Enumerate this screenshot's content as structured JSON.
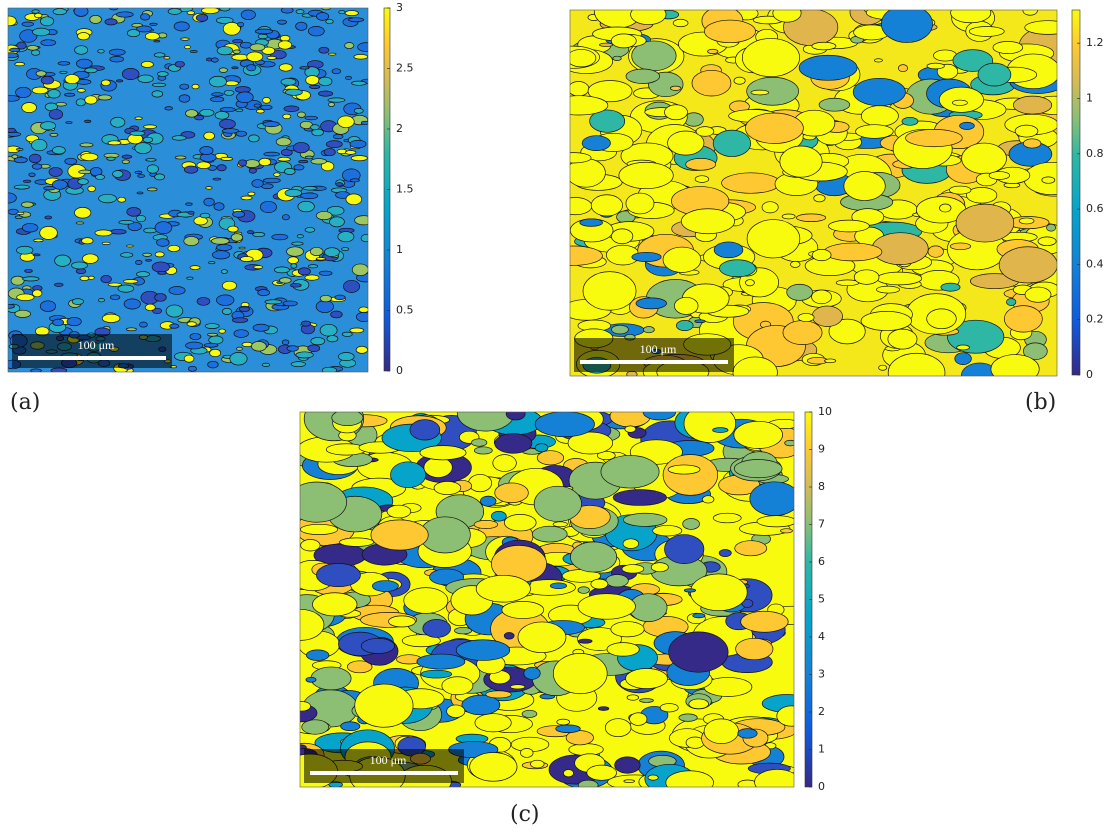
{
  "panels": [
    {
      "label": "(a)",
      "scale_bar": "100 μm",
      "colorbar": {
        "lim": [
          0,
          3
        ],
        "ticks": [
          0,
          0.5,
          1,
          1.5,
          2,
          2.5,
          3
        ]
      }
    },
    {
      "label": "(b)",
      "scale_bar": "100 μm",
      "colorbar": {
        "lim": [
          0,
          1.32
        ],
        "ticks": [
          0,
          0.2,
          0.4,
          0.6,
          0.8,
          1,
          1.2
        ]
      }
    },
    {
      "label": "(c)",
      "scale_bar": "100 μm",
      "colorbar": {
        "lim": [
          0,
          10
        ],
        "ticks": [
          0,
          1,
          2,
          3,
          4,
          5,
          6,
          7,
          8,
          9,
          10
        ]
      }
    }
  ]
}
